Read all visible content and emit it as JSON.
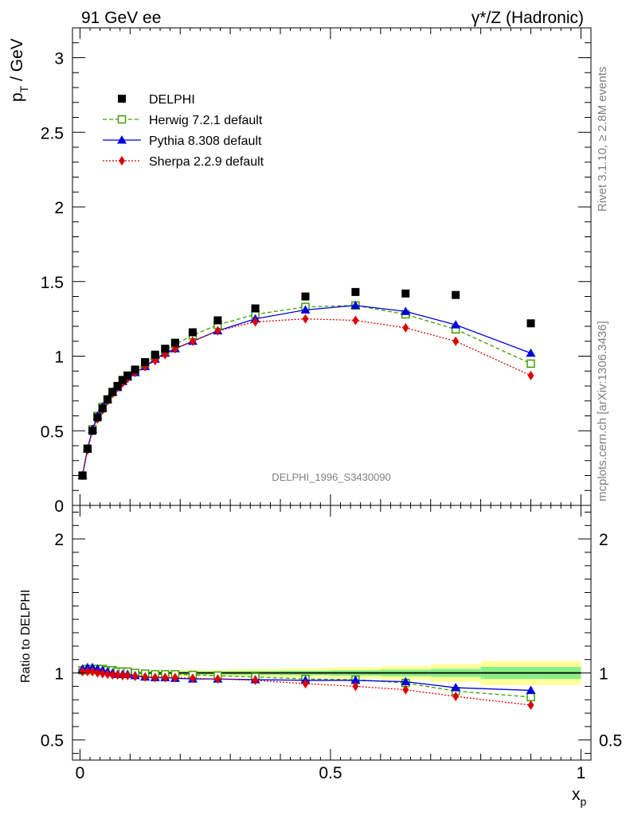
{
  "header": {
    "left": "91 GeV ee",
    "right": "γ*/Z (Hadronic)"
  },
  "side_labels": {
    "rivet": "Rivet 3.1.10, ≥ 2.8M events",
    "mcplots": "mcplots.cern.ch [arXiv:1306.3436]"
  },
  "watermark": "DELPHI_1996_S3430090",
  "chart_data": [
    {
      "type": "scatter",
      "panel": "main",
      "ylabel": "p_T / GeV",
      "ylabel_main": "p",
      "ylabel_sub": "T",
      "ylabel_unit": " / GeV",
      "xlim": [
        -0.015,
        1.02
      ],
      "ylim": [
        0,
        3.2
      ],
      "yticks": [
        0,
        0.5,
        1,
        1.5,
        2,
        2.5,
        3
      ],
      "ytick_labels": [
        "0",
        "0.5",
        "1",
        "1.5",
        "2",
        "2.5",
        "3"
      ],
      "legend_position": "top-left",
      "x": [
        0.005,
        0.015,
        0.025,
        0.035,
        0.045,
        0.055,
        0.065,
        0.075,
        0.085,
        0.095,
        0.11,
        0.13,
        0.15,
        0.17,
        0.19,
        0.225,
        0.275,
        0.35,
        0.45,
        0.55,
        0.65,
        0.75,
        0.9
      ],
      "series": [
        {
          "name": "DELPHI",
          "color": "#000000",
          "marker": "square-filled",
          "values": [
            0.2,
            0.38,
            0.5,
            0.59,
            0.65,
            0.71,
            0.76,
            0.8,
            0.84,
            0.87,
            0.91,
            0.96,
            1.01,
            1.05,
            1.09,
            1.16,
            1.24,
            1.32,
            1.4,
            1.43,
            1.42,
            1.41,
            1.22
          ]
        },
        {
          "name": "Herwig 7.2.1 default",
          "color": "#3f9f00",
          "marker": "square-open",
          "line": "dashed",
          "values": [
            0.2,
            0.38,
            0.51,
            0.6,
            0.66,
            0.71,
            0.76,
            0.8,
            0.84,
            0.87,
            0.9,
            0.95,
            1.0,
            1.04,
            1.08,
            1.14,
            1.21,
            1.28,
            1.33,
            1.34,
            1.28,
            1.18,
            0.95
          ]
        },
        {
          "name": "Pythia 8.308 default",
          "color": "#0000dd",
          "marker": "triangle-filled",
          "line": "solid",
          "values": [
            0.2,
            0.38,
            0.51,
            0.6,
            0.66,
            0.71,
            0.76,
            0.79,
            0.83,
            0.86,
            0.89,
            0.93,
            0.98,
            1.02,
            1.05,
            1.1,
            1.17,
            1.25,
            1.31,
            1.34,
            1.3,
            1.21,
            1.02
          ]
        },
        {
          "name": "Sherpa 2.2.9 default",
          "color": "#dd0000",
          "marker": "diamond-filled",
          "line": "dotted",
          "values": [
            0.2,
            0.37,
            0.5,
            0.58,
            0.64,
            0.7,
            0.75,
            0.79,
            0.82,
            0.85,
            0.89,
            0.93,
            0.97,
            1.01,
            1.05,
            1.1,
            1.17,
            1.23,
            1.25,
            1.24,
            1.19,
            1.1,
            0.87
          ]
        }
      ]
    },
    {
      "type": "scatter",
      "panel": "ratio",
      "ylabel": "Ratio to DELPHI",
      "xlabel": "x_p",
      "xlabel_main": "x",
      "xlabel_sub": "p",
      "xlim": [
        -0.015,
        1.02
      ],
      "ylim": [
        0.35,
        2.25
      ],
      "yticks": [
        0.5,
        1,
        2
      ],
      "ytick_labels": [
        "0.5",
        "1",
        "2"
      ],
      "xticks": [
        0,
        0.5,
        1
      ],
      "xtick_labels": [
        "0",
        "0.5",
        "1"
      ],
      "reference": 1,
      "uncertainty_bands": {
        "x_edges": [
          0.0,
          0.1,
          0.2,
          0.3,
          0.4,
          0.5,
          0.6,
          0.7,
          0.8,
          1.0
        ],
        "inner": [
          0.01,
          0.01,
          0.012,
          0.014,
          0.017,
          0.02,
          0.025,
          0.03,
          0.045
        ],
        "outer": [
          0.015,
          0.018,
          0.022,
          0.028,
          0.035,
          0.042,
          0.05,
          0.065,
          0.09
        ],
        "inner_color": "#88ee88",
        "outer_color": "#ffff99"
      },
      "x": [
        0.005,
        0.015,
        0.025,
        0.035,
        0.045,
        0.055,
        0.065,
        0.075,
        0.085,
        0.095,
        0.11,
        0.13,
        0.15,
        0.17,
        0.19,
        0.225,
        0.275,
        0.35,
        0.45,
        0.55,
        0.65,
        0.75,
        0.9
      ],
      "series": [
        {
          "name": "Herwig 7.2.1 default",
          "color": "#3f9f00",
          "marker": "square-open",
          "line": "dashed",
          "values": [
            1.02,
            1.03,
            1.03,
            1.03,
            1.03,
            1.02,
            1.02,
            1.01,
            1.01,
            1.01,
            1.0,
            0.995,
            0.99,
            0.99,
            0.99,
            0.985,
            0.98,
            0.97,
            0.955,
            0.95,
            0.925,
            0.865,
            0.82
          ]
        },
        {
          "name": "Pythia 8.308 default",
          "color": "#0000dd",
          "marker": "triangle-filled",
          "line": "solid",
          "values": [
            1.03,
            1.04,
            1.04,
            1.03,
            1.02,
            1.01,
            1.0,
            0.99,
            0.99,
            0.99,
            0.98,
            0.97,
            0.965,
            0.965,
            0.96,
            0.955,
            0.955,
            0.95,
            0.945,
            0.945,
            0.935,
            0.89,
            0.87
          ]
        },
        {
          "name": "Sherpa 2.2.9 default",
          "color": "#dd0000",
          "marker": "diamond-filled",
          "line": "dotted",
          "values": [
            1.01,
            1.01,
            1.01,
            1.0,
            0.995,
            0.99,
            0.985,
            0.985,
            0.98,
            0.98,
            0.975,
            0.97,
            0.965,
            0.965,
            0.965,
            0.96,
            0.955,
            0.945,
            0.92,
            0.9,
            0.875,
            0.825,
            0.76
          ]
        }
      ]
    }
  ]
}
